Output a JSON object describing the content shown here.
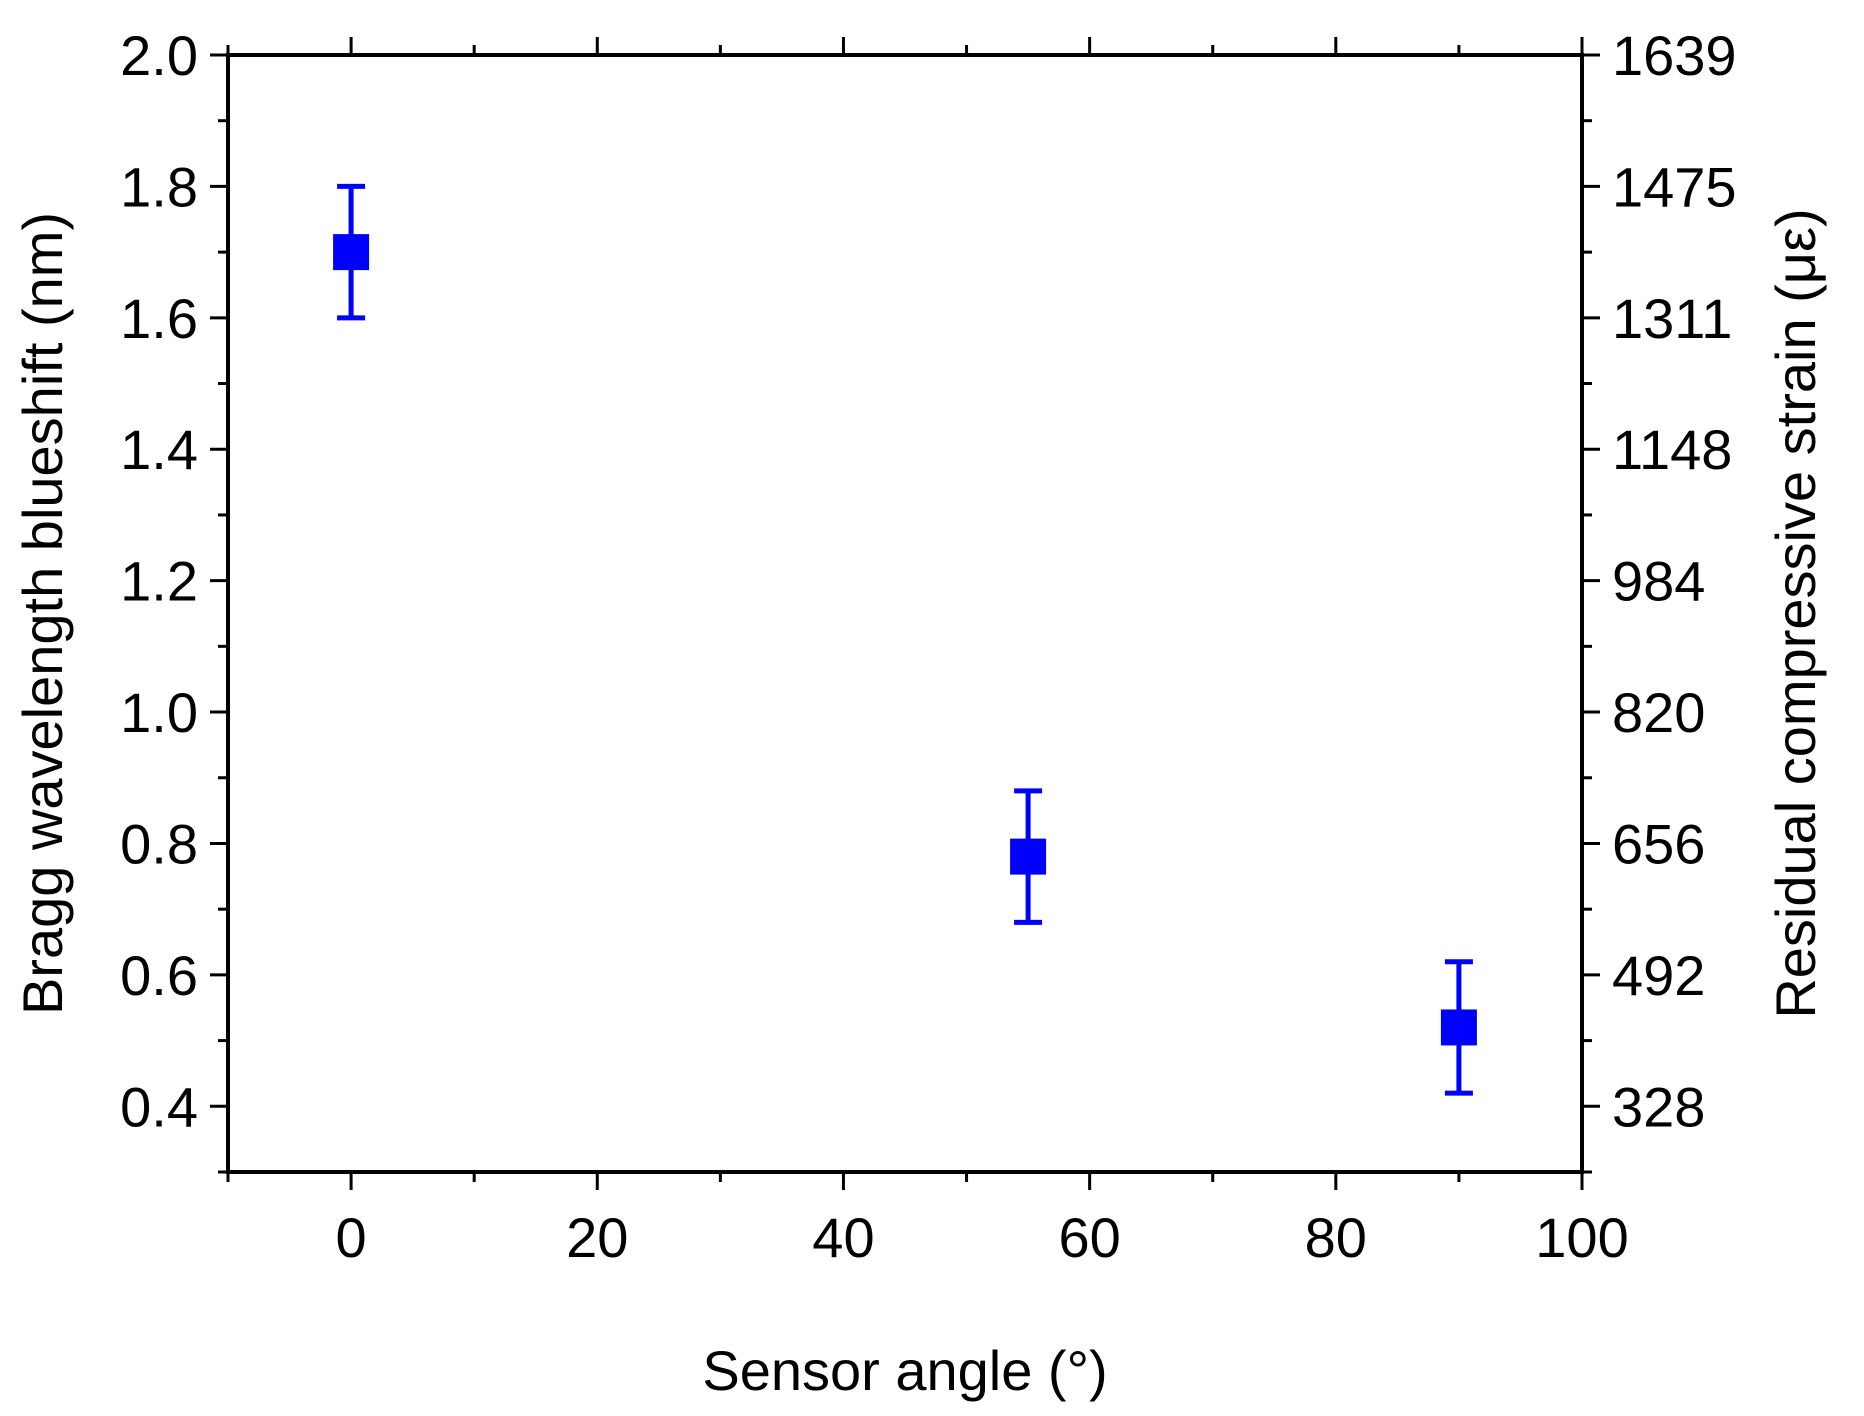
{
  "chart_data": {
    "type": "scatter",
    "xlabel": "Sensor angle (°)",
    "ylabel": "Bragg wavelength blueshift (nm)",
    "y2label": "Residual compressive strain (με)",
    "xlim": [
      -10,
      100
    ],
    "ylim": [
      0.3,
      2.0
    ],
    "x_ticks": [
      0,
      20,
      40,
      60,
      80,
      100
    ],
    "y_ticks": [
      0.4,
      0.6,
      0.8,
      1.0,
      1.2,
      1.4,
      1.6,
      1.8,
      2.0
    ],
    "y_tick_labels": [
      "0.4",
      "0.6",
      "0.8",
      "1.0",
      "1.2",
      "1.4",
      "1.6",
      "1.8",
      "2.0"
    ],
    "y2_ticks": [
      328,
      492,
      656,
      820,
      984,
      1148,
      1311,
      1475,
      1639
    ],
    "grid": false,
    "series": [
      {
        "color": "#0000ff",
        "marker": "square",
        "x": [
          0,
          55,
          90
        ],
        "y": [
          1.7,
          0.78,
          0.52
        ],
        "yerr": [
          0.1,
          0.1,
          0.1
        ]
      }
    ]
  }
}
